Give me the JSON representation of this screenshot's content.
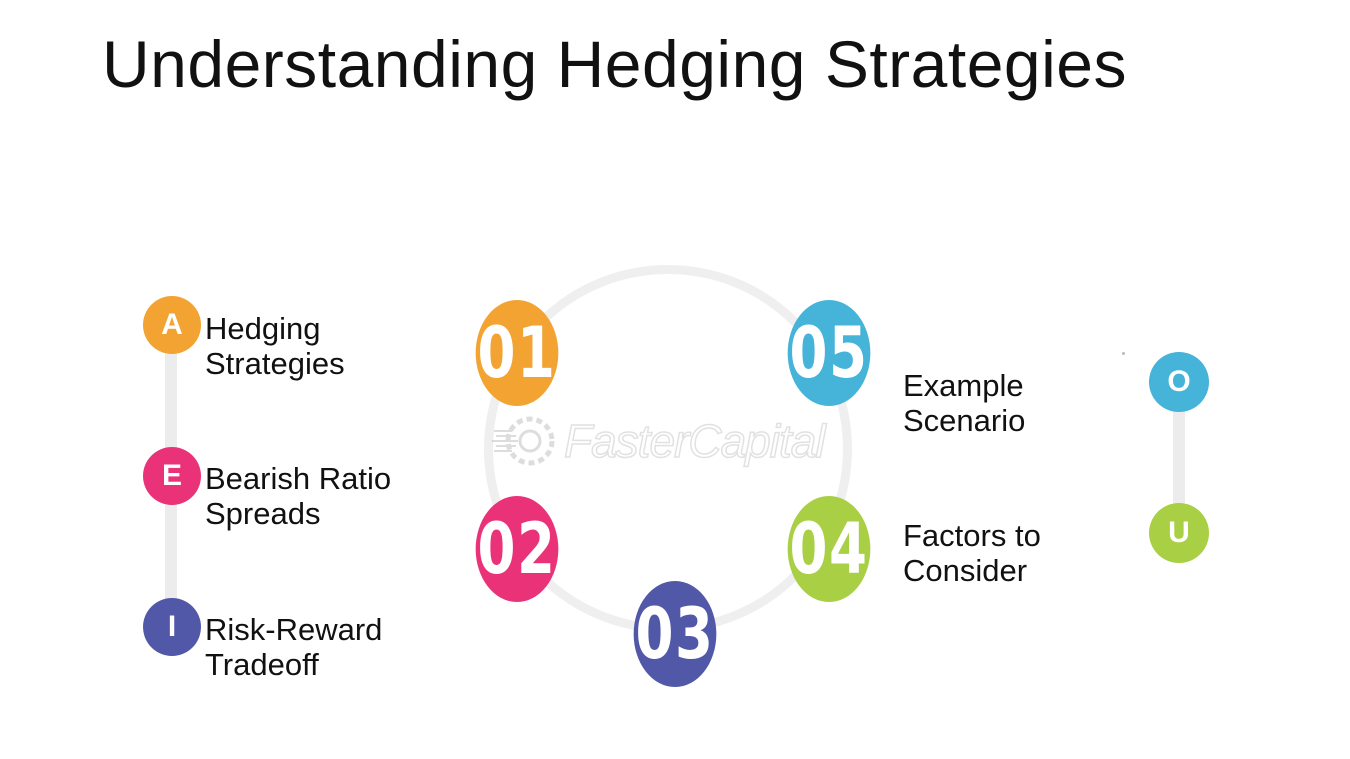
{
  "title": "Understanding Hedging Strategies",
  "watermark": "FasterCapital",
  "colors": {
    "orange": "#F2A332",
    "pink": "#EA3279",
    "indigo": "#5158A8",
    "sky": "#46B3D8",
    "green": "#A9CF45"
  },
  "vowel_badges": {
    "a": "A",
    "e": "E",
    "i": "I",
    "o": "O",
    "u": "U"
  },
  "steps": {
    "s01": "01",
    "s02": "02",
    "s03": "03",
    "s04": "04",
    "s05": "05"
  },
  "labels": {
    "hedging": [
      "Hedging",
      "Strategies"
    ],
    "bearish": [
      "Bearish Ratio",
      "Spreads"
    ],
    "risk": [
      "Risk-Reward",
      "Tradeoff"
    ],
    "example": [
      "Example",
      "Scenario"
    ],
    "factors": [
      "Factors to",
      "Consider"
    ]
  }
}
